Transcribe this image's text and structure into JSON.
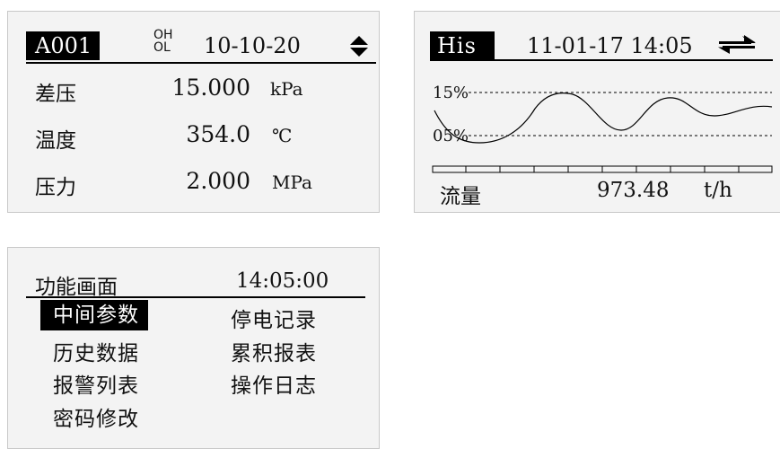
{
  "panel_main": {
    "tag": "A001",
    "alarm_hi": "OH",
    "alarm_lo": "OL",
    "date": "10-10-20",
    "rows": [
      {
        "label": "差压",
        "value": "15.000",
        "unit": "kPa"
      },
      {
        "label": "温度",
        "value": "354.0",
        "unit": "℃"
      },
      {
        "label": "压力",
        "value": "2.000",
        "unit": "MPa"
      }
    ]
  },
  "panel_history": {
    "tag": "His",
    "datetime": "11-01-17 14:05",
    "upper_label": "15%",
    "lower_label": "05%",
    "footer_label": "流量",
    "footer_value": "973.48",
    "footer_unit": "t/h"
  },
  "panel_menu": {
    "title": "功能画面",
    "time": "14:05:00",
    "items": [
      "中间参数",
      "停电记录",
      "历史数据",
      "累积报表",
      "报警列表",
      "操作日志",
      "密码修改"
    ]
  }
}
